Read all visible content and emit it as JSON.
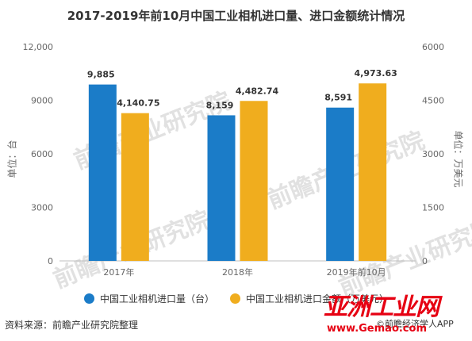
{
  "chart_data": {
    "type": "bar",
    "title": "2017-2019年前10月中国工业相机进口量、进口金额统计情况",
    "categories": [
      "2017年",
      "2018年",
      "2019年前10月"
    ],
    "series": [
      {
        "name": "中国工业相机进口量（台）",
        "axis": "left",
        "color": "#1b7cc8",
        "values": [
          9885,
          8159,
          8591
        ],
        "labels": [
          "9,885",
          "8,159",
          "8,591"
        ]
      },
      {
        "name": "中国工业相机进口金额（万美元）",
        "axis": "right",
        "color": "#f0ad1e",
        "values": [
          4140.75,
          4482.74,
          4973.63
        ],
        "labels": [
          "4,140.75",
          "4,482.74",
          "4,973.63"
        ]
      }
    ],
    "left_axis": {
      "label": "单位：台",
      "ylim": [
        0,
        12000
      ],
      "ticks": [
        0,
        3000,
        6000,
        9000,
        12000
      ],
      "tick_labels": [
        "0",
        "3000",
        "6000",
        "9000",
        "12,000"
      ]
    },
    "right_axis": {
      "label": "单位：万美元",
      "ylim": [
        0,
        6000
      ],
      "ticks": [
        0,
        1500,
        3000,
        4500,
        6000
      ],
      "tick_labels": [
        "0",
        "1500",
        "3000",
        "4500",
        "6000"
      ]
    },
    "grid": false,
    "legend": "bottom"
  },
  "source": "资料来源：前瞻产业研究院整理",
  "watermark": "前瞻产业研究院",
  "logo": {
    "main": "亚洲工业网",
    "sub": "www.Gemao.com",
    "app": "©前瞻经济学人APP"
  }
}
